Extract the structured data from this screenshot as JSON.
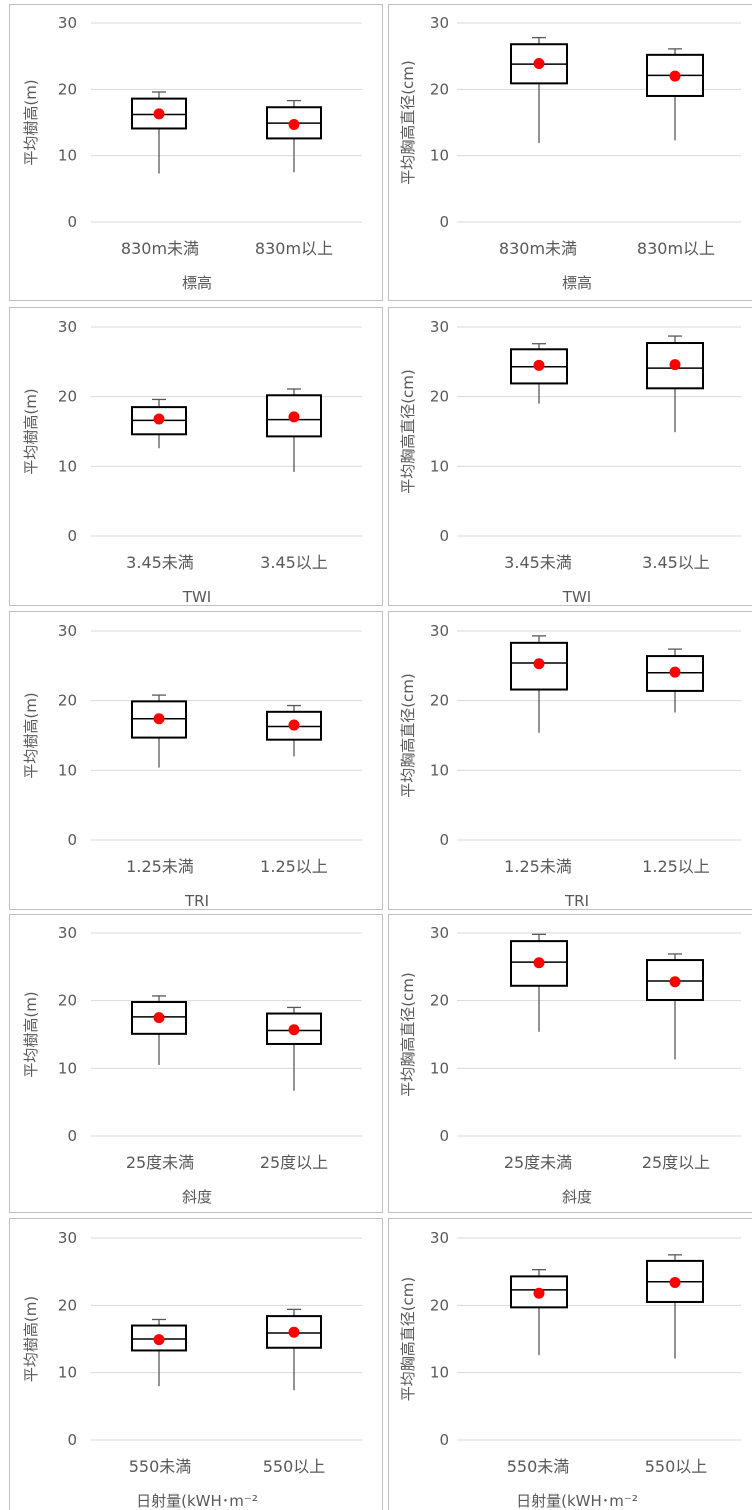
{
  "colors": {
    "box_stroke": "#000000",
    "whisker": "#595959",
    "mean_marker": "#ff0000",
    "gridline": "#d9d9d9",
    "panel_border": "#bfbfbf",
    "text": "#595959"
  },
  "chart_data": [
    {
      "type": "box",
      "ylabel": "平均樹高(m)",
      "xlabel": "標高",
      "ylim": [
        0,
        30
      ],
      "yticks": [
        0,
        10,
        20,
        30
      ],
      "grid": true,
      "categories": [
        "830m未満",
        "830m以上"
      ],
      "boxes": [
        {
          "min": 7.3,
          "q1": 14.1,
          "median": 16.2,
          "q3": 18.6,
          "max": 19.6,
          "mean": 16.3
        },
        {
          "min": 7.5,
          "q1": 12.6,
          "median": 14.9,
          "q3": 17.3,
          "max": 18.3,
          "mean": 14.7
        }
      ]
    },
    {
      "type": "box",
      "ylabel": "平均胸高直径(cm)",
      "xlabel": "標高",
      "ylim": [
        0,
        30
      ],
      "yticks": [
        0,
        10,
        20,
        30
      ],
      "grid": true,
      "categories": [
        "830m未満",
        "830m以上"
      ],
      "boxes": [
        {
          "min": 11.9,
          "q1": 20.9,
          "median": 23.8,
          "q3": 26.8,
          "max": 27.8,
          "mean": 23.9
        },
        {
          "min": 12.3,
          "q1": 19.0,
          "median": 22.1,
          "q3": 25.2,
          "max": 26.1,
          "mean": 22.0
        }
      ]
    },
    {
      "type": "box",
      "ylabel": "平均樹高(m)",
      "xlabel": "TWI",
      "ylim": [
        0,
        30
      ],
      "yticks": [
        0,
        10,
        20,
        30
      ],
      "grid": true,
      "categories": [
        "3.45未満",
        "3.45以上"
      ],
      "boxes": [
        {
          "min": 12.6,
          "q1": 14.6,
          "median": 16.6,
          "q3": 18.5,
          "max": 19.6,
          "mean": 16.8
        },
        {
          "min": 9.2,
          "q1": 14.3,
          "median": 16.7,
          "q3": 20.2,
          "max": 21.1,
          "mean": 17.1
        }
      ]
    },
    {
      "type": "box",
      "ylabel": "平均胸高直径(cm)",
      "xlabel": "TWI",
      "ylim": [
        0,
        30
      ],
      "yticks": [
        0,
        10,
        20,
        30
      ],
      "grid": true,
      "categories": [
        "3.45未満",
        "3.45以上"
      ],
      "boxes": [
        {
          "min": 19.0,
          "q1": 21.9,
          "median": 24.3,
          "q3": 26.8,
          "max": 27.6,
          "mean": 24.5
        },
        {
          "min": 14.9,
          "q1": 21.2,
          "median": 24.1,
          "q3": 27.7,
          "max": 28.7,
          "mean": 24.6
        }
      ]
    },
    {
      "type": "box",
      "ylabel": "平均樹高(m)",
      "xlabel": "TRI",
      "ylim": [
        0,
        30
      ],
      "yticks": [
        0,
        10,
        20,
        30
      ],
      "grid": true,
      "categories": [
        "1.25未満",
        "1.25以上"
      ],
      "boxes": [
        {
          "min": 10.4,
          "q1": 14.7,
          "median": 17.4,
          "q3": 19.9,
          "max": 20.8,
          "mean": 17.4
        },
        {
          "min": 12.0,
          "q1": 14.4,
          "median": 16.3,
          "q3": 18.4,
          "max": 19.3,
          "mean": 16.5
        }
      ]
    },
    {
      "type": "box",
      "ylabel": "平均胸高直径(cm)",
      "xlabel": "TRI",
      "ylim": [
        0,
        30
      ],
      "yticks": [
        0,
        10,
        20,
        30
      ],
      "grid": true,
      "categories": [
        "1.25未満",
        "1.25以上"
      ],
      "boxes": [
        {
          "min": 15.4,
          "q1": 21.6,
          "median": 25.4,
          "q3": 28.3,
          "max": 29.3,
          "mean": 25.3
        },
        {
          "min": 18.3,
          "q1": 21.4,
          "median": 24.0,
          "q3": 26.4,
          "max": 27.4,
          "mean": 24.1
        }
      ]
    },
    {
      "type": "box",
      "ylabel": "平均樹高(m)",
      "xlabel": "斜度",
      "ylim": [
        0,
        30
      ],
      "yticks": [
        0,
        10,
        20,
        30
      ],
      "grid": true,
      "categories": [
        "25度未満",
        "25度以上"
      ],
      "boxes": [
        {
          "min": 10.5,
          "q1": 15.1,
          "median": 17.6,
          "q3": 19.8,
          "max": 20.7,
          "mean": 17.5
        },
        {
          "min": 6.7,
          "q1": 13.6,
          "median": 15.6,
          "q3": 18.1,
          "max": 19.0,
          "mean": 15.7
        }
      ]
    },
    {
      "type": "box",
      "ylabel": "平均胸高直径(cm)",
      "xlabel": "斜度",
      "ylim": [
        0,
        30
      ],
      "yticks": [
        0,
        10,
        20,
        30
      ],
      "grid": true,
      "categories": [
        "25度未満",
        "25度以上"
      ],
      "boxes": [
        {
          "min": 15.4,
          "q1": 22.2,
          "median": 25.7,
          "q3": 28.8,
          "max": 29.8,
          "mean": 25.6
        },
        {
          "min": 11.3,
          "q1": 20.1,
          "median": 22.9,
          "q3": 26.0,
          "max": 26.9,
          "mean": 22.8
        }
      ]
    },
    {
      "type": "box",
      "ylabel": "平均樹高(m)",
      "xlabel": "日射量(kWH･m⁻²",
      "ylim": [
        0,
        30
      ],
      "yticks": [
        0,
        10,
        20,
        30
      ],
      "grid": true,
      "categories": [
        "550未満",
        "550以上"
      ],
      "boxes": [
        {
          "min": 8.0,
          "q1": 13.3,
          "median": 15.0,
          "q3": 17.0,
          "max": 17.9,
          "mean": 14.9
        },
        {
          "min": 7.4,
          "q1": 13.7,
          "median": 15.9,
          "q3": 18.4,
          "max": 19.4,
          "mean": 16.0
        }
      ]
    },
    {
      "type": "box",
      "ylabel": "平均胸高直径(cm)",
      "xlabel": "日射量(kWH･m⁻²",
      "ylim": [
        0,
        30
      ],
      "yticks": [
        0,
        10,
        20,
        30
      ],
      "grid": true,
      "categories": [
        "550未満",
        "550以上"
      ],
      "boxes": [
        {
          "min": 12.6,
          "q1": 19.7,
          "median": 22.3,
          "q3": 24.3,
          "max": 25.3,
          "mean": 21.8
        },
        {
          "min": 12.1,
          "q1": 20.5,
          "median": 23.5,
          "q3": 26.6,
          "max": 27.5,
          "mean": 23.4
        }
      ]
    }
  ]
}
